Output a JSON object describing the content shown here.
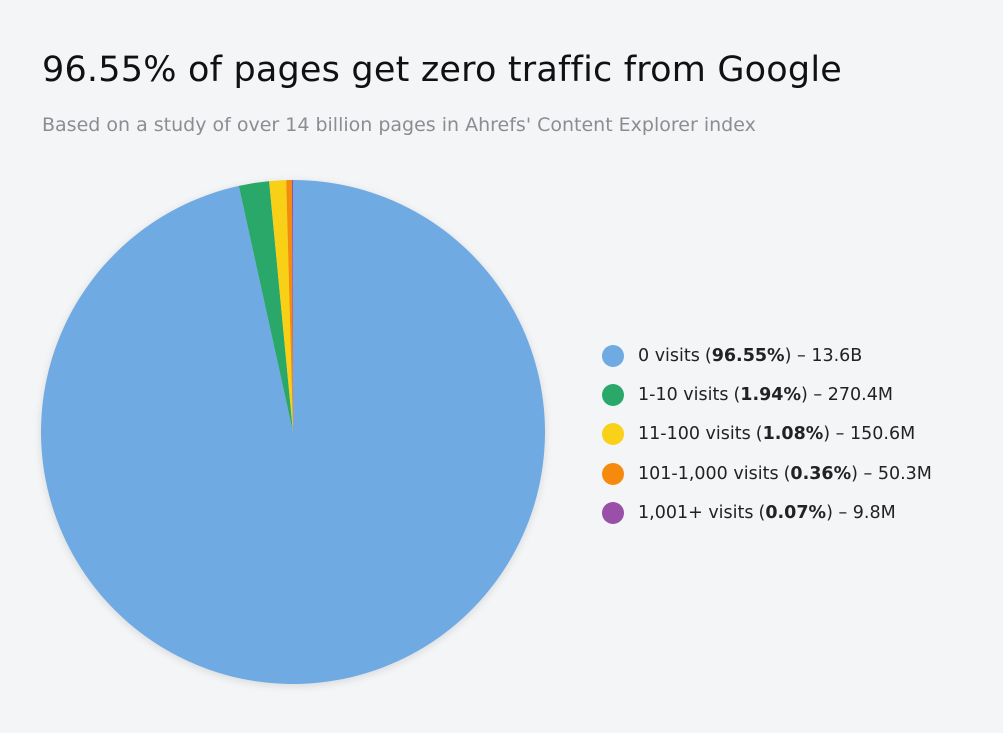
{
  "chart_data": {
    "type": "pie",
    "title": "96.55% of pages get zero traffic from Google",
    "subtitle": "Based on a study of over 14 billion pages in Ahrefs' Content Explorer index",
    "categories": [
      "0 visits",
      "1-10 visits",
      "11-100 visits",
      "101-1,000 visits",
      "1,001+ visits"
    ],
    "values": [
      96.55,
      1.94,
      1.08,
      0.36,
      0.07
    ],
    "value_labels": [
      "96.55%",
      "1.94%",
      "1.08%",
      "0.36%",
      "0.07%"
    ],
    "counts": [
      "13.6B",
      "270.4M",
      "150.6M",
      "50.3M",
      "9.8M"
    ],
    "colors": [
      "#6faae2",
      "#2aa86a",
      "#f8d118",
      "#f68a0c",
      "#9a4fa8"
    ],
    "legend": "right"
  }
}
